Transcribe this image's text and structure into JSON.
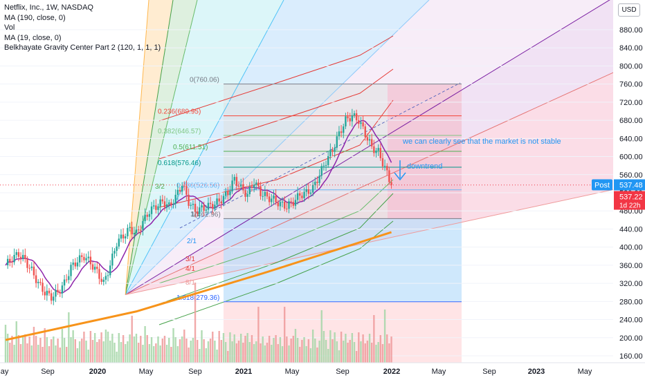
{
  "legend": {
    "title": "Netflix, Inc., 1W, NASDAQ",
    "lines": [
      "MA (190, close, 0)",
      "Vol",
      "MA (19, close, 0)",
      "Belkhayate Gravity Center Part 2 (120, 1, 1, 1)"
    ]
  },
  "currency_button": "USD",
  "price_tags": {
    "post_label": "Post",
    "post_price": "537.48",
    "last_price": "537.22",
    "countdown": "1d 22h"
  },
  "colors": {
    "up": "#26a69a",
    "down": "#ef5350",
    "ma190": "#f7931a",
    "ma19": "#8e24aa",
    "fib_zone": "#e7e7ea",
    "blue_zone": "#bbdefb",
    "red_zone": "#f8bbd0",
    "annotation": "#2196f3",
    "post_tag": "#2196f3",
    "last_tag": "#f23645"
  },
  "annotations": {
    "note": "we can clearly see that the market is not stable",
    "downtrend": "downtrend"
  },
  "chart_data": {
    "type": "candlestick",
    "title": "Netflix, Inc., 1W, NASDAQ",
    "y_axis": {
      "ticks": [
        160,
        200,
        240,
        280,
        320,
        360,
        400,
        440,
        480,
        520,
        560,
        600,
        640,
        680,
        720,
        760,
        800,
        840,
        880
      ],
      "range": [
        145,
        925
      ]
    },
    "x_axis": {
      "labels": [
        "May",
        "Sep",
        "2020",
        "May",
        "Sep",
        "2021",
        "May",
        "Sep",
        "2022",
        "May",
        "Sep",
        "2023",
        "May"
      ],
      "bold": [
        "2020",
        "2021",
        "2022",
        "2023"
      ]
    },
    "fib_levels": [
      {
        "label": "0(760.06)",
        "value": 760.06
      },
      {
        "label": "0.236(689.95)",
        "value": 689.95
      },
      {
        "label": "0.382(646.57)",
        "value": 646.57
      },
      {
        "label": "0.5(611.51)",
        "value": 611.51
      },
      {
        "label": "0.618(576.46)",
        "value": 576.46
      },
      {
        "label": "0.786(526.56)",
        "value": 526.56
      },
      {
        "label": "1(462.96)",
        "value": 462.96
      },
      {
        "label": "1.618(279.36)",
        "value": 279.36
      }
    ],
    "fan_labels": [
      "3/2",
      "2/1",
      "3/1",
      "4/1",
      "8/1",
      "1/1"
    ],
    "price_path": [
      [
        0,
        360
      ],
      [
        3,
        375
      ],
      [
        6,
        385
      ],
      [
        9,
        370
      ],
      [
        12,
        348
      ],
      [
        15,
        320
      ],
      [
        18,
        300
      ],
      [
        21,
        290
      ],
      [
        24,
        300
      ],
      [
        27,
        320
      ],
      [
        30,
        355
      ],
      [
        33,
        370
      ],
      [
        36,
        380
      ],
      [
        39,
        365
      ],
      [
        42,
        345
      ],
      [
        45,
        320
      ],
      [
        48,
        360
      ],
      [
        51,
        410
      ],
      [
        54,
        425
      ],
      [
        57,
        440
      ],
      [
        60,
        430
      ],
      [
        63,
        455
      ],
      [
        66,
        480
      ],
      [
        69,
        490
      ],
      [
        72,
        500
      ],
      [
        75,
        490
      ],
      [
        78,
        510
      ],
      [
        81,
        540
      ],
      [
        84,
        500
      ],
      [
        87,
        480
      ],
      [
        90,
        485
      ],
      [
        93,
        490
      ],
      [
        96,
        495
      ],
      [
        99,
        505
      ],
      [
        102,
        520
      ],
      [
        105,
        550
      ],
      [
        108,
        530
      ],
      [
        111,
        515
      ],
      [
        114,
        545
      ],
      [
        117,
        520
      ],
      [
        120,
        510
      ],
      [
        123,
        505
      ],
      [
        126,
        495
      ],
      [
        129,
        490
      ],
      [
        132,
        500
      ],
      [
        135,
        515
      ],
      [
        138,
        520
      ],
      [
        141,
        530
      ],
      [
        144,
        560
      ],
      [
        147,
        590
      ],
      [
        150,
        615
      ],
      [
        153,
        650
      ],
      [
        156,
        680
      ],
      [
        159,
        690
      ],
      [
        162,
        680
      ],
      [
        165,
        650
      ],
      [
        168,
        620
      ],
      [
        171,
        610
      ],
      [
        174,
        575
      ],
      [
        177,
        537
      ]
    ],
    "ma190": [
      [
        0,
        195
      ],
      [
        60,
        258
      ],
      [
        120,
        345
      ],
      [
        177,
        433
      ]
    ],
    "price_range_box": {
      "top": 760.06,
      "bottom": 279.36
    },
    "last_price": 537.22,
    "post_price": 537.48
  }
}
